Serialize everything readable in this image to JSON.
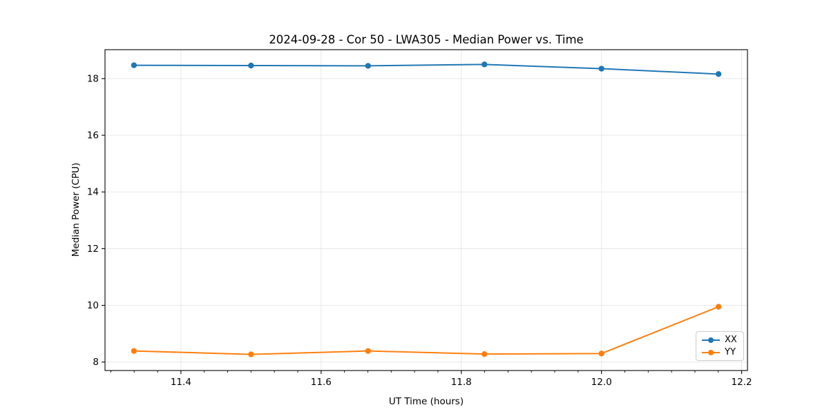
{
  "chart_data": {
    "type": "line",
    "title": "2024-09-28 - Cor 50 - LWA305 - Median Power vs. Time",
    "xlabel": "UT Time (hours)",
    "ylabel": "Median Power (CPU)",
    "xlim": [
      11.2917,
      12.2083
    ],
    "ylim": [
      7.7,
      19.02
    ],
    "xticks": [
      11.4,
      11.6,
      11.8,
      12.0,
      12.2
    ],
    "xtick_labels": [
      "11.4",
      "11.6",
      "11.8",
      "12.0",
      "12.2"
    ],
    "yticks": [
      8,
      10,
      12,
      14,
      16,
      18
    ],
    "ytick_labels": [
      "8",
      "10",
      "12",
      "14",
      "16",
      "18"
    ],
    "x_minor_tick_step": 0.0333333,
    "grid": true,
    "grid_color": "#e6e6e6",
    "axis_color": "#000000",
    "background_color": "#ffffff",
    "legend_position": "lower right",
    "x": [
      11.333,
      11.5,
      11.667,
      11.833,
      12.0,
      12.167
    ],
    "series": [
      {
        "name": "XX",
        "color": "#1f77b4",
        "values": [
          18.47,
          18.46,
          18.45,
          18.5,
          18.35,
          18.16
        ]
      },
      {
        "name": "YY",
        "color": "#ff7f0e",
        "values": [
          8.39,
          8.27,
          8.39,
          8.28,
          8.3,
          9.95
        ]
      }
    ]
  }
}
